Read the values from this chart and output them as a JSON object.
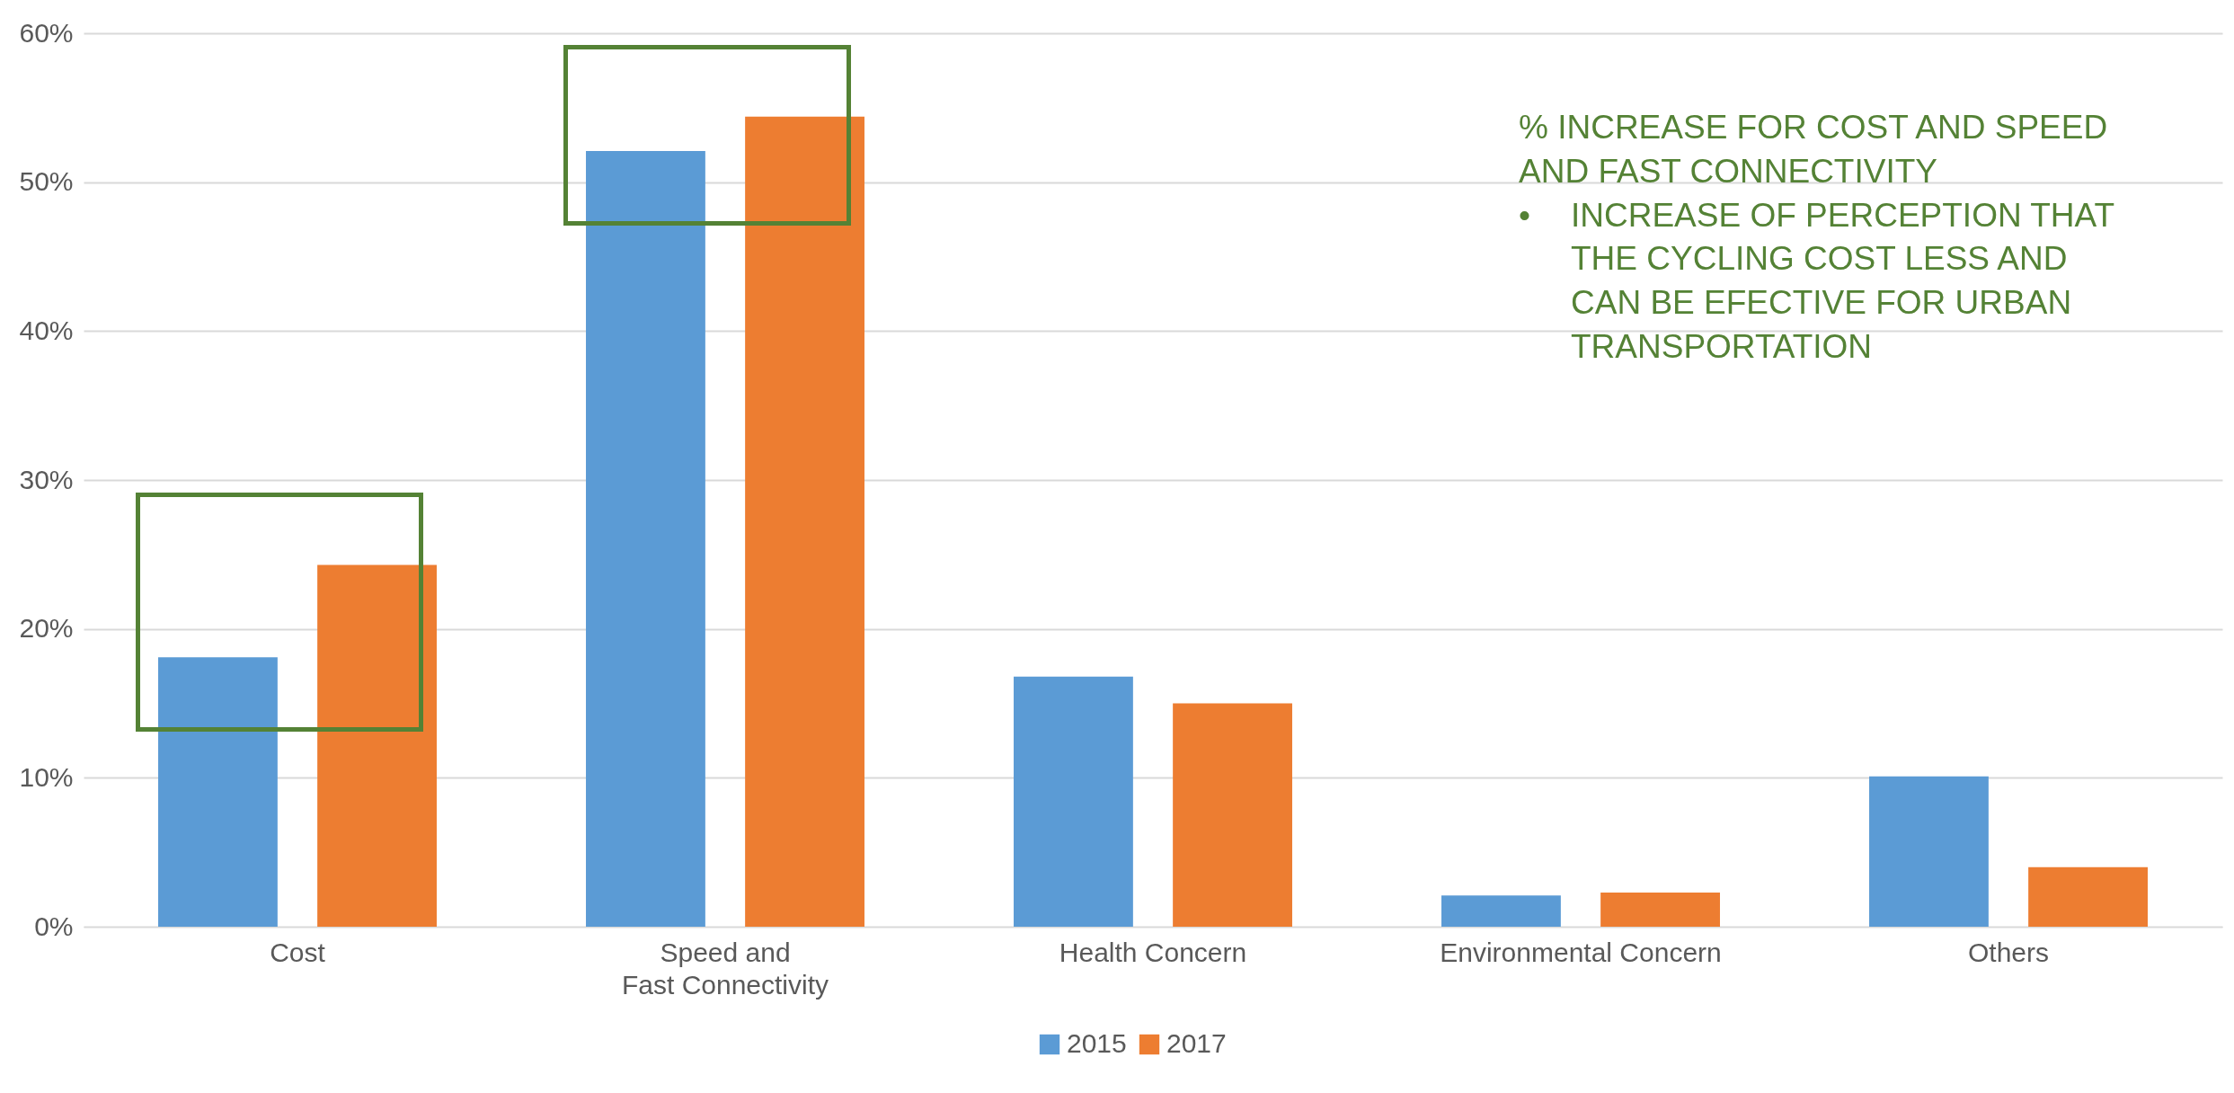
{
  "chart_data": {
    "type": "bar",
    "categories": [
      "Cost",
      "Speed and Fast Connectivity",
      "Health Concern",
      "Environmental Concern",
      "Others"
    ],
    "series": [
      {
        "name": "2015",
        "color": "#5b9bd5",
        "values": [
          18.1,
          52.1,
          16.8,
          2.1,
          10.1
        ]
      },
      {
        "name": "2017",
        "color": "#ed7d31",
        "values": [
          24.3,
          54.4,
          15.0,
          2.3,
          4.0
        ]
      }
    ],
    "ylim": [
      0,
      60
    ],
    "yticks": [
      {
        "value": 0,
        "label": "0%"
      },
      {
        "value": 10,
        "label": "10%"
      },
      {
        "value": 20,
        "label": "20%"
      },
      {
        "value": 30,
        "label": "30%"
      },
      {
        "value": 40,
        "label": "40%"
      },
      {
        "value": 50,
        "label": "50%"
      },
      {
        "value": 60,
        "label": "60%"
      }
    ],
    "grid": "y",
    "legend": "bottom",
    "annotations": [
      "% INCREASE FOR COST AND SPEED AND FAST CONNECTIVITY",
      "• INCREASE OF PERCEPTION THAT THE CYCLING COST LESS AND CAN BE EFECTIVE FOR URBAN TRANSPORTATION"
    ]
  }
}
